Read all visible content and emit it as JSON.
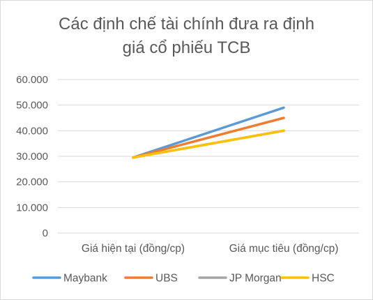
{
  "chart_data": {
    "type": "line",
    "title_line1": "Các định chế tài chính đưa ra định",
    "title_line2": "giá cổ phiếu TCB",
    "categories": [
      "Giá hiện tại (đồng/cp)",
      "Giá mục tiêu (đồng/cp)"
    ],
    "y_ticks": [
      "0",
      "10.000",
      "20.000",
      "30.000",
      "40.000",
      "50.000",
      "60.000"
    ],
    "ylim": [
      0,
      60000
    ],
    "grid": true,
    "legend_position": "bottom",
    "series": [
      {
        "name": "Maybank",
        "values": [
          29500,
          49000
        ],
        "color": "#5b9bd5"
      },
      {
        "name": "UBS",
        "values": [
          29500,
          45000
        ],
        "color": "#ed7d31"
      },
      {
        "name": "JP Morgan",
        "values": [
          29500,
          40000
        ],
        "color": "#a5a5a5"
      },
      {
        "name": "HSC",
        "values": [
          29500,
          40000
        ],
        "color": "#ffc000"
      }
    ]
  }
}
